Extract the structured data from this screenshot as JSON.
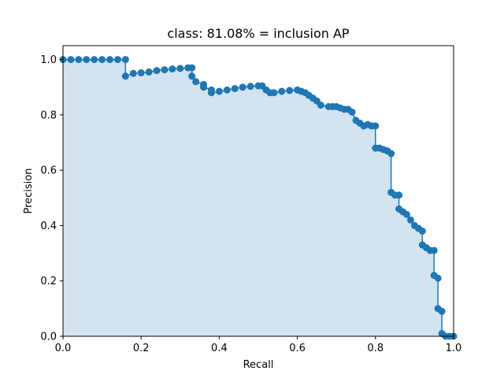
{
  "chart_data": {
    "type": "line",
    "title": "class: 81.08% = inclusion AP",
    "xlabel": "Recall",
    "ylabel": "Precision",
    "xlim": [
      0.0,
      1.0
    ],
    "ylim": [
      0.0,
      1.05
    ],
    "xticks": [
      "0.0",
      "0.2",
      "0.4",
      "0.6",
      "0.8",
      "1.0"
    ],
    "yticks": [
      "0.0",
      "0.2",
      "0.4",
      "0.6",
      "0.8",
      "1.0"
    ],
    "grid": false,
    "colors": {
      "series": "#1f77b4",
      "area": "#1f77b4",
      "interp": "#d62728"
    },
    "area_alpha": 0.2,
    "series": [
      {
        "x": [
          0.0,
          0.02,
          0.04,
          0.06,
          0.08,
          0.1,
          0.12,
          0.14,
          0.16,
          0.16,
          0.18,
          0.2,
          0.22,
          0.24,
          0.26,
          0.28,
          0.3,
          0.32,
          0.33,
          0.33,
          0.34,
          0.36,
          0.36,
          0.38,
          0.38,
          0.4,
          0.42,
          0.44,
          0.46,
          0.48,
          0.5,
          0.51,
          0.52,
          0.53,
          0.54,
          0.56,
          0.58,
          0.6,
          0.61,
          0.62,
          0.63,
          0.64,
          0.65,
          0.66,
          0.68,
          0.69,
          0.7,
          0.71,
          0.72,
          0.73,
          0.74,
          0.75,
          0.76,
          0.77,
          0.78,
          0.79,
          0.8,
          0.8,
          0.81,
          0.82,
          0.83,
          0.84,
          0.84,
          0.85,
          0.86,
          0.86,
          0.87,
          0.88,
          0.89,
          0.9,
          0.91,
          0.92,
          0.92,
          0.93,
          0.94,
          0.95,
          0.95,
          0.96,
          0.96,
          0.97,
          0.97,
          0.98,
          0.99,
          1.0
        ],
        "y": [
          1.0,
          1.0,
          1.0,
          1.0,
          1.0,
          1.0,
          1.0,
          1.0,
          1.0,
          0.94,
          0.95,
          0.952,
          0.955,
          0.96,
          0.963,
          0.966,
          0.968,
          0.97,
          0.97,
          0.94,
          0.92,
          0.91,
          0.9,
          0.89,
          0.88,
          0.885,
          0.89,
          0.895,
          0.9,
          0.903,
          0.905,
          0.905,
          0.89,
          0.88,
          0.88,
          0.885,
          0.888,
          0.89,
          0.885,
          0.88,
          0.87,
          0.86,
          0.85,
          0.835,
          0.83,
          0.83,
          0.83,
          0.825,
          0.82,
          0.82,
          0.81,
          0.78,
          0.77,
          0.76,
          0.765,
          0.76,
          0.76,
          0.68,
          0.68,
          0.675,
          0.67,
          0.66,
          0.52,
          0.51,
          0.51,
          0.46,
          0.45,
          0.44,
          0.42,
          0.4,
          0.39,
          0.38,
          0.33,
          0.32,
          0.31,
          0.31,
          0.22,
          0.21,
          0.1,
          0.09,
          0.01,
          0.0,
          0.0,
          0.0
        ]
      }
    ]
  }
}
